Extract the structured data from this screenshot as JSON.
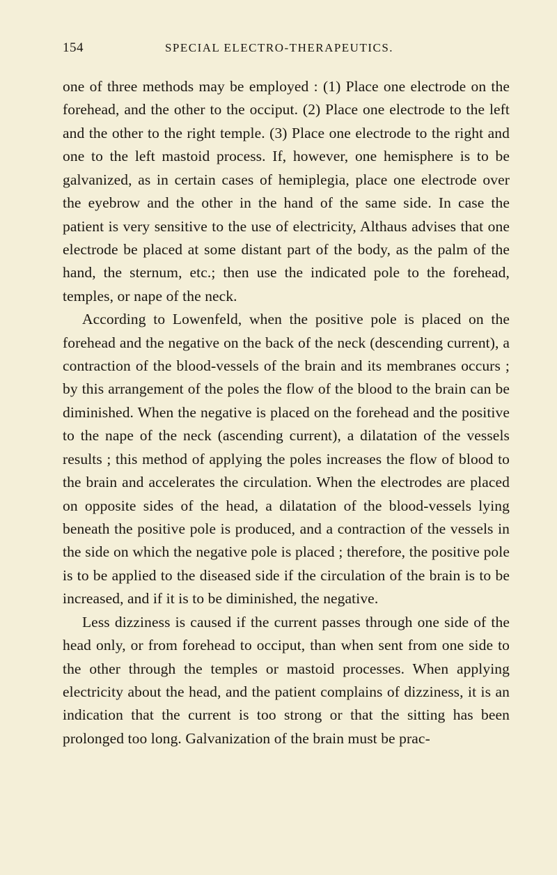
{
  "page": {
    "number": "154",
    "chapter_title": "SPECIAL ELECTRO-THERAPEUTICS.",
    "background_color": "#f4efd8",
    "text_color": "#1a1611",
    "font_family": "Georgia, 'Times New Roman', serif",
    "body_fontsize": 21.5,
    "line_height": 1.555,
    "paragraphs": [
      "one of three methods may be employed : (1) Place one electrode on the forehead, and the other to the occiput. (2) Place one electrode to the left and the other to the right temple. (3) Place one electrode to the right and one to the left mastoid process. If, however, one hemisphere is to be galvanized, as in certain cases of hemiplegia, place one electrode over the eyebrow and the other in the hand of the same side. In case the patient is very sensitive to the use of electricity, Althaus advises that one electrode be placed at some distant part of the body, as the palm of the hand, the sternum, etc.; then use the indicated pole to the forehead, temples, or nape of the neck.",
      "According to Lowenfeld, when the positive pole is placed on the forehead and the negative on the back of the neck (descending current), a contraction of the blood-vessels of the brain and its membranes occurs ; by this arrangement of the poles the flow of the blood to the brain can be diminished. When the negative is placed on the forehead and the positive to the nape of the neck (ascending current), a dilatation of the vessels results ; this method of applying the poles increases the flow of blood to the brain and accelerates the circulation. When the electrodes are placed on opposite sides of the head, a dilatation of the blood-vessels lying beneath the positive pole is produced, and a contraction of the vessels in the side on which the negative pole is placed ; therefore, the positive pole is to be applied to the diseased side if the circulation of the brain is to be increased, and if it is to be diminished, the negative.",
      "Less dizziness is caused if the current passes through one side of the head only, or from forehead to occiput, than when sent from one side to the other through the temples or mastoid processes. When applying electricity about the head, and the patient complains of dizziness, it is an indication that the current is too strong or that the sitting has been prolonged too long. Galvanization of the brain must be prac-"
    ]
  }
}
